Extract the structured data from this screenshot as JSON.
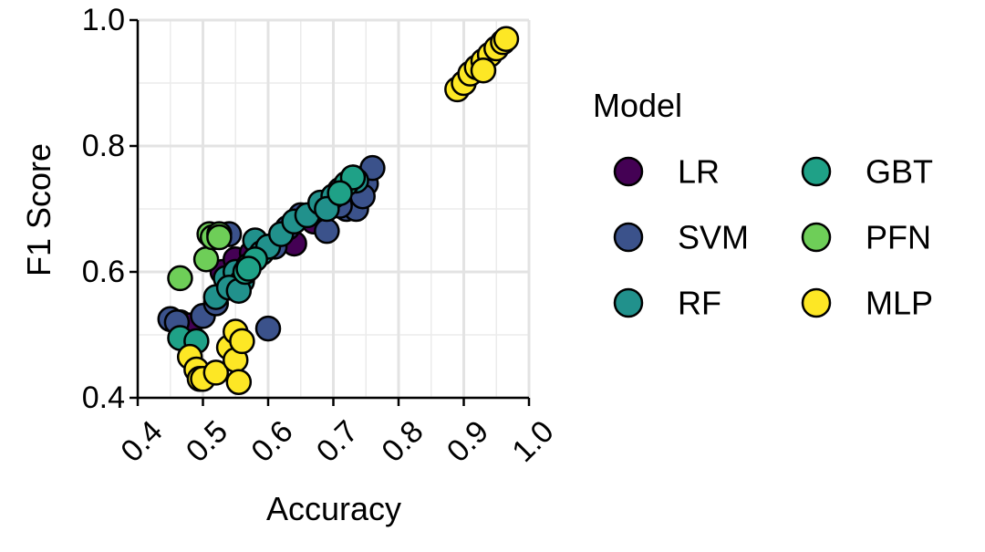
{
  "chart_data": {
    "type": "scatter",
    "title": "",
    "xlabel": "Accuracy",
    "ylabel": "F1 Score",
    "xlim": [
      0.4,
      1.0
    ],
    "ylim": [
      0.4,
      1.0
    ],
    "x_ticks": [
      "0.4",
      "0.5",
      "0.6",
      "0.7",
      "0.8",
      "0.9",
      "1.0"
    ],
    "y_ticks": [
      "0.4",
      "0.6",
      "0.8",
      "1.0"
    ],
    "grid": true,
    "legend": {
      "title": "Model",
      "position": "right"
    },
    "series": [
      {
        "name": "LR",
        "color": "#440154",
        "points": [
          [
            0.465,
            0.52
          ],
          [
            0.48,
            0.515
          ],
          [
            0.53,
            0.6
          ],
          [
            0.55,
            0.62
          ],
          [
            0.575,
            0.63
          ],
          [
            0.6,
            0.64
          ],
          [
            0.64,
            0.645
          ],
          [
            0.67,
            0.68
          ],
          [
            0.7,
            0.715
          ],
          [
            0.73,
            0.71
          ]
        ]
      },
      {
        "name": "SVM",
        "color": "#3b528b",
        "points": [
          [
            0.45,
            0.525
          ],
          [
            0.46,
            0.52
          ],
          [
            0.54,
            0.66
          ],
          [
            0.5,
            0.53
          ],
          [
            0.52,
            0.55
          ],
          [
            0.545,
            0.58
          ],
          [
            0.6,
            0.51
          ],
          [
            0.61,
            0.64
          ],
          [
            0.63,
            0.67
          ],
          [
            0.65,
            0.69
          ],
          [
            0.68,
            0.7
          ],
          [
            0.69,
            0.665
          ],
          [
            0.7,
            0.72
          ],
          [
            0.71,
            0.73
          ],
          [
            0.72,
            0.7
          ],
          [
            0.73,
            0.75
          ],
          [
            0.735,
            0.7
          ],
          [
            0.75,
            0.74
          ],
          [
            0.76,
            0.765
          ],
          [
            0.745,
            0.72
          ],
          [
            0.71,
            0.705
          ]
        ]
      },
      {
        "name": "RF",
        "color": "#21918c",
        "points": [
          [
            0.52,
            0.56
          ],
          [
            0.535,
            0.59
          ],
          [
            0.55,
            0.6
          ],
          [
            0.56,
            0.585
          ],
          [
            0.57,
            0.61
          ],
          [
            0.58,
            0.65
          ],
          [
            0.59,
            0.63
          ],
          [
            0.6,
            0.64
          ],
          [
            0.62,
            0.66
          ],
          [
            0.64,
            0.68
          ],
          [
            0.66,
            0.69
          ],
          [
            0.68,
            0.71
          ],
          [
            0.7,
            0.72
          ],
          [
            0.72,
            0.74
          ],
          [
            0.735,
            0.745
          ],
          [
            0.69,
            0.7
          ],
          [
            0.54,
            0.575
          ],
          [
            0.555,
            0.57
          ]
        ]
      },
      {
        "name": "GBT",
        "color": "#1fa187",
        "points": [
          [
            0.465,
            0.495
          ],
          [
            0.49,
            0.49
          ],
          [
            0.565,
            0.6
          ],
          [
            0.58,
            0.62
          ],
          [
            0.72,
            0.74
          ],
          [
            0.73,
            0.75
          ],
          [
            0.71,
            0.725
          ],
          [
            0.57,
            0.605
          ]
        ]
      },
      {
        "name": "PFN",
        "color": "#6ece58",
        "points": [
          [
            0.465,
            0.59
          ],
          [
            0.505,
            0.62
          ],
          [
            0.51,
            0.66
          ],
          [
            0.515,
            0.655
          ],
          [
            0.525,
            0.66
          ],
          [
            0.525,
            0.655
          ]
        ]
      },
      {
        "name": "MLP",
        "color": "#fde725",
        "points": [
          [
            0.48,
            0.465
          ],
          [
            0.49,
            0.445
          ],
          [
            0.495,
            0.43
          ],
          [
            0.5,
            0.43
          ],
          [
            0.52,
            0.44
          ],
          [
            0.54,
            0.48
          ],
          [
            0.55,
            0.505
          ],
          [
            0.55,
            0.46
          ],
          [
            0.555,
            0.425
          ],
          [
            0.56,
            0.49
          ],
          [
            0.89,
            0.89
          ],
          [
            0.9,
            0.9
          ],
          [
            0.91,
            0.915
          ],
          [
            0.92,
            0.925
          ],
          [
            0.93,
            0.935
          ],
          [
            0.94,
            0.945
          ],
          [
            0.95,
            0.955
          ],
          [
            0.96,
            0.965
          ],
          [
            0.965,
            0.97
          ],
          [
            0.93,
            0.92
          ]
        ]
      }
    ]
  }
}
